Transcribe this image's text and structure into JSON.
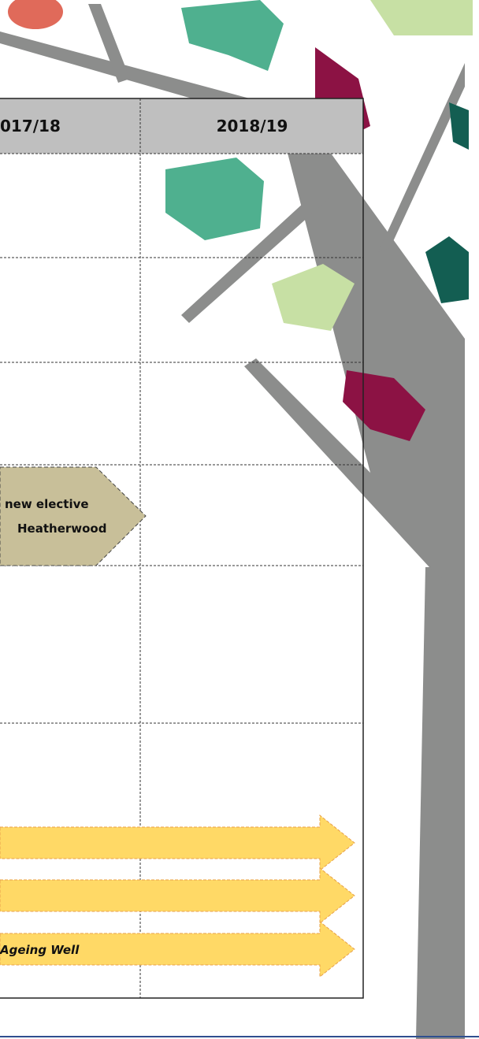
{
  "table": {
    "columns": [
      "017/18",
      "2018/19"
    ]
  },
  "milestone": {
    "lines": [
      "new elective",
      "Heatherwood"
    ]
  },
  "arrows": [
    {
      "label": null
    },
    {
      "label": null
    },
    {
      "label": "Ageing Well"
    }
  ]
}
